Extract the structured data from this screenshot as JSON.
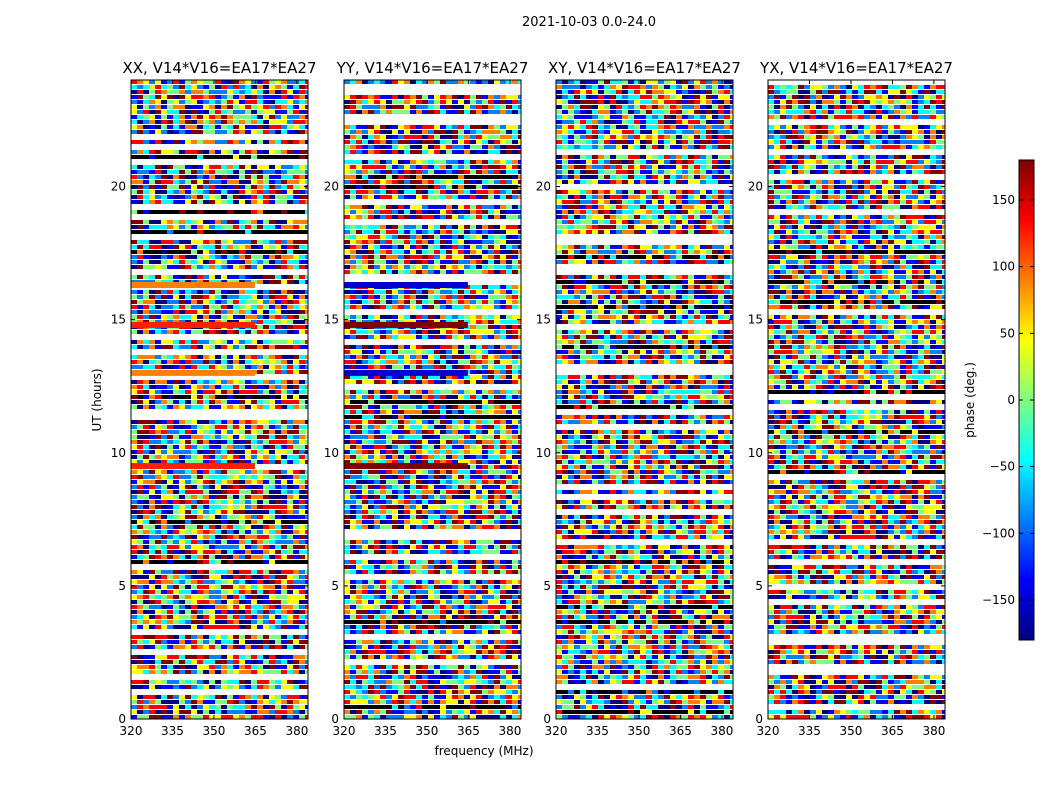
{
  "figure": {
    "suptitle": "2021-10-03 0.0-24.0",
    "xlabel": "frequency (MHz)",
    "ylabel": "UT (hours)"
  },
  "colorbar": {
    "label": "phase (deg.)",
    "range": [
      -180,
      180
    ],
    "ticks": [
      -150,
      -100,
      -50,
      0,
      50,
      100,
      150
    ],
    "colormap": "jet",
    "colors": [
      "#00007f",
      "#0000ff",
      "#007fff",
      "#00ffff",
      "#7fff7f",
      "#ffff00",
      "#ff7f00",
      "#ff0000",
      "#7f0000"
    ]
  },
  "chart_data": [
    {
      "type": "heatmap",
      "title": "XX, V14*V16=EA17*EA27",
      "xlim": [
        320,
        384
      ],
      "ylim": [
        0,
        24
      ],
      "xticks": [
        320,
        335,
        350,
        365,
        380
      ],
      "yticks": [
        0,
        5,
        10,
        15,
        20
      ],
      "value": "phase (deg.)"
    },
    {
      "type": "heatmap",
      "title": "YY, V14*V16=EA17*EA27",
      "xlim": [
        320,
        384
      ],
      "ylim": [
        0,
        24
      ],
      "xticks": [
        320,
        335,
        350,
        365,
        380
      ],
      "yticks": [
        0,
        5,
        10,
        15,
        20
      ],
      "value": "phase (deg.)"
    },
    {
      "type": "heatmap",
      "title": "XY, V14*V16=EA17*EA27",
      "xlim": [
        320,
        384
      ],
      "ylim": [
        0,
        24
      ],
      "xticks": [
        320,
        335,
        350,
        365,
        380
      ],
      "yticks": [
        0,
        5,
        10,
        15,
        20
      ],
      "value": "phase (deg.)"
    },
    {
      "type": "heatmap",
      "title": "YX, V14*V16=EA17*EA27",
      "xlim": [
        320,
        384
      ],
      "ylim": [
        0,
        24
      ],
      "xticks": [
        320,
        335,
        350,
        365,
        380
      ],
      "yticks": [
        0,
        5,
        10,
        15,
        20
      ],
      "value": "phase (deg.)"
    }
  ]
}
